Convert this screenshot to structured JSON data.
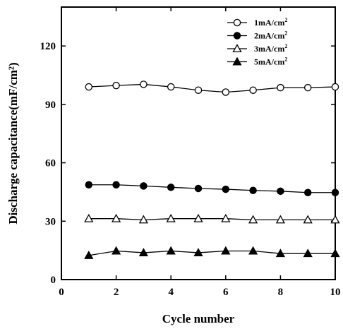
{
  "chart_data": {
    "type": "line",
    "xlabel": "Cycle number",
    "ylabel": "Discharge capacitance(mF/cm²)",
    "xlim": [
      0,
      10
    ],
    "ylim": [
      0,
      140
    ],
    "xticks": [
      0,
      2,
      4,
      6,
      8,
      10
    ],
    "yticks": [
      0,
      30,
      60,
      90,
      120
    ],
    "x": [
      1,
      2,
      3,
      4,
      5,
      6,
      7,
      8,
      9,
      10
    ],
    "series": [
      {
        "name": "1mA/cm",
        "unit_sup": "2",
        "marker": "circle-open",
        "values": [
          99.0,
          99.7,
          100.3,
          99.0,
          97.3,
          96.3,
          97.3,
          98.6,
          98.6,
          99.0
        ]
      },
      {
        "name": "2mA/cm",
        "unit_sup": "2",
        "marker": "circle-filled",
        "values": [
          48.7,
          48.7,
          48.1,
          47.4,
          46.8,
          46.4,
          45.8,
          45.4,
          44.7,
          44.7
        ]
      },
      {
        "name": "3mA/cm",
        "unit_sup": "2",
        "marker": "triangle-open",
        "values": [
          31.3,
          31.3,
          30.7,
          31.3,
          31.3,
          31.3,
          30.7,
          30.7,
          30.7,
          30.7
        ]
      },
      {
        "name": "5mA/cm",
        "unit_sup": "2",
        "marker": "triangle-filled",
        "values": [
          12.4,
          14.7,
          13.8,
          14.7,
          13.8,
          14.7,
          14.7,
          13.4,
          13.4,
          13.4
        ]
      }
    ],
    "grid": false,
    "legend_position": "top-right"
  }
}
